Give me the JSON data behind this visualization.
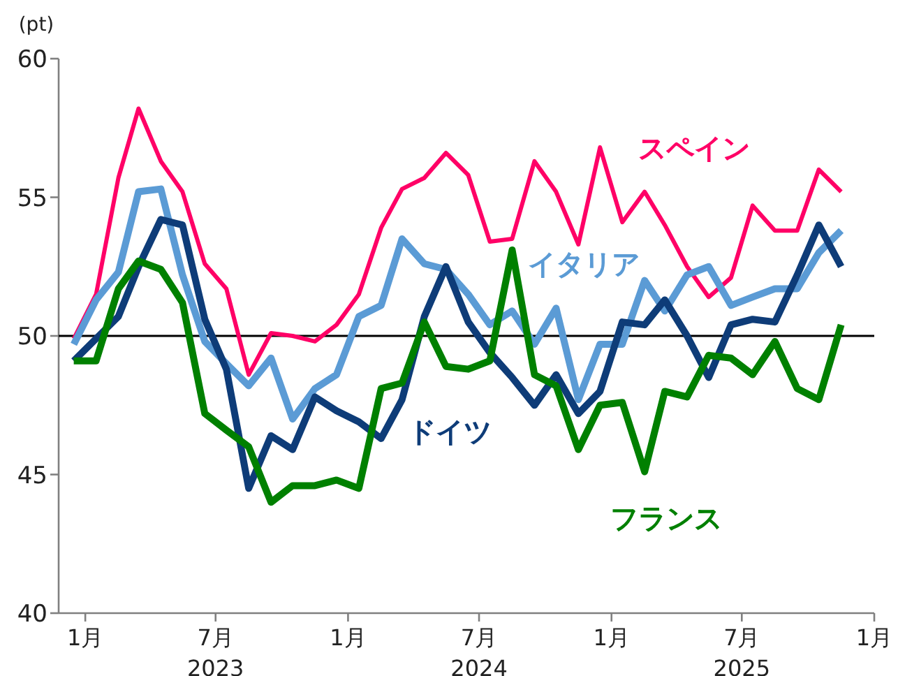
{
  "chart_data": {
    "type": "line",
    "ylabel": "(pt)",
    "x": [
      "2022-12-16",
      "2023-01-16",
      "2023-02-16",
      "2023-03-16",
      "2023-04-16",
      "2023-05-16",
      "2023-06-16",
      "2023-07-16",
      "2023-08-16",
      "2023-09-16",
      "2023-10-16",
      "2023-11-16",
      "2023-12-16",
      "2024-01-16",
      "2024-02-16",
      "2024-03-16",
      "2024-04-16",
      "2024-05-16",
      "2024-06-16",
      "2024-07-16",
      "2024-08-16",
      "2024-09-16",
      "2024-10-16",
      "2024-11-16",
      "2024-12-16",
      "2025-01-16",
      "2025-02-16",
      "2025-03-16",
      "2025-04-16",
      "2025-05-16",
      "2025-06-16",
      "2025-07-16",
      "2025-08-16",
      "2025-09-16",
      "2025-10-16",
      "2025-11-16"
    ],
    "series": [
      {
        "name": "スペイン",
        "color": "#ff0066",
        "values": [
          49.9,
          51.5,
          55.7,
          58.2,
          56.3,
          55.2,
          52.6,
          51.7,
          48.6,
          50.1,
          50.0,
          49.8,
          50.4,
          51.5,
          53.9,
          55.3,
          55.7,
          56.6,
          55.8,
          53.4,
          53.5,
          56.3,
          55.2,
          53.3,
          56.8,
          54.1,
          55.2,
          54.0,
          52.5,
          51.4,
          52.1,
          54.7,
          53.8,
          53.8,
          56.0,
          55.2
        ]
      },
      {
        "name": "イタリア",
        "color": "#5b9bd5",
        "values": [
          49.7,
          51.3,
          52.3,
          55.2,
          55.3,
          52.2,
          49.8,
          49.0,
          48.2,
          49.2,
          47.0,
          48.1,
          48.6,
          50.7,
          51.1,
          53.5,
          52.6,
          52.4,
          51.5,
          50.4,
          50.9,
          49.7,
          51.0,
          47.7,
          49.7,
          49.7,
          52.0,
          50.9,
          52.2,
          52.5,
          51.1,
          51.4,
          51.7,
          51.7,
          53.0,
          53.8
        ]
      },
      {
        "name": "ドイツ",
        "color": "#0e3c78",
        "values": [
          49.1,
          49.9,
          50.7,
          52.5,
          54.2,
          54.0,
          50.6,
          48.8,
          44.5,
          46.4,
          45.9,
          47.8,
          47.3,
          46.9,
          46.3,
          47.7,
          50.7,
          52.5,
          50.5,
          49.4,
          48.5,
          47.5,
          48.6,
          47.2,
          48.0,
          50.5,
          50.4,
          51.3,
          50.0,
          48.5,
          50.4,
          50.6,
          50.5,
          52.2,
          54.0,
          52.5
        ]
      },
      {
        "name": "フランス",
        "color": "#008000",
        "values": [
          49.1,
          49.1,
          51.7,
          52.7,
          52.4,
          51.2,
          47.2,
          46.6,
          46.0,
          44.0,
          44.6,
          44.6,
          44.8,
          44.5,
          48.1,
          48.3,
          50.5,
          48.9,
          48.8,
          49.1,
          53.1,
          48.6,
          48.2,
          45.9,
          47.5,
          47.6,
          45.1,
          48.0,
          47.8,
          49.3,
          49.2,
          48.6,
          49.8,
          48.1,
          47.7,
          50.4
        ]
      }
    ],
    "xlim": [
      "2022-11-25",
      "2026-01-01"
    ],
    "xticks": [
      {
        "value": "2023-01-01",
        "label": "1月"
      },
      {
        "value": "2023-07-01",
        "label": "7月\n2023"
      },
      {
        "value": "2024-01-01",
        "label": "1月"
      },
      {
        "value": "2024-07-01",
        "label": "7月\n2024"
      },
      {
        "value": "2025-01-01",
        "label": "1月"
      },
      {
        "value": "2025-07-01",
        "label": "7月\n2025"
      },
      {
        "value": "2026-01-01",
        "label": "1月"
      }
    ],
    "ylim": [
      40,
      60
    ],
    "yticks": [
      40,
      45,
      50,
      55,
      60
    ],
    "ref_lines": [
      {
        "axis": "y",
        "value": 50,
        "color": "#000000"
      }
    ],
    "grid": false,
    "legend": false,
    "marker": "none",
    "line_style": "solid"
  }
}
